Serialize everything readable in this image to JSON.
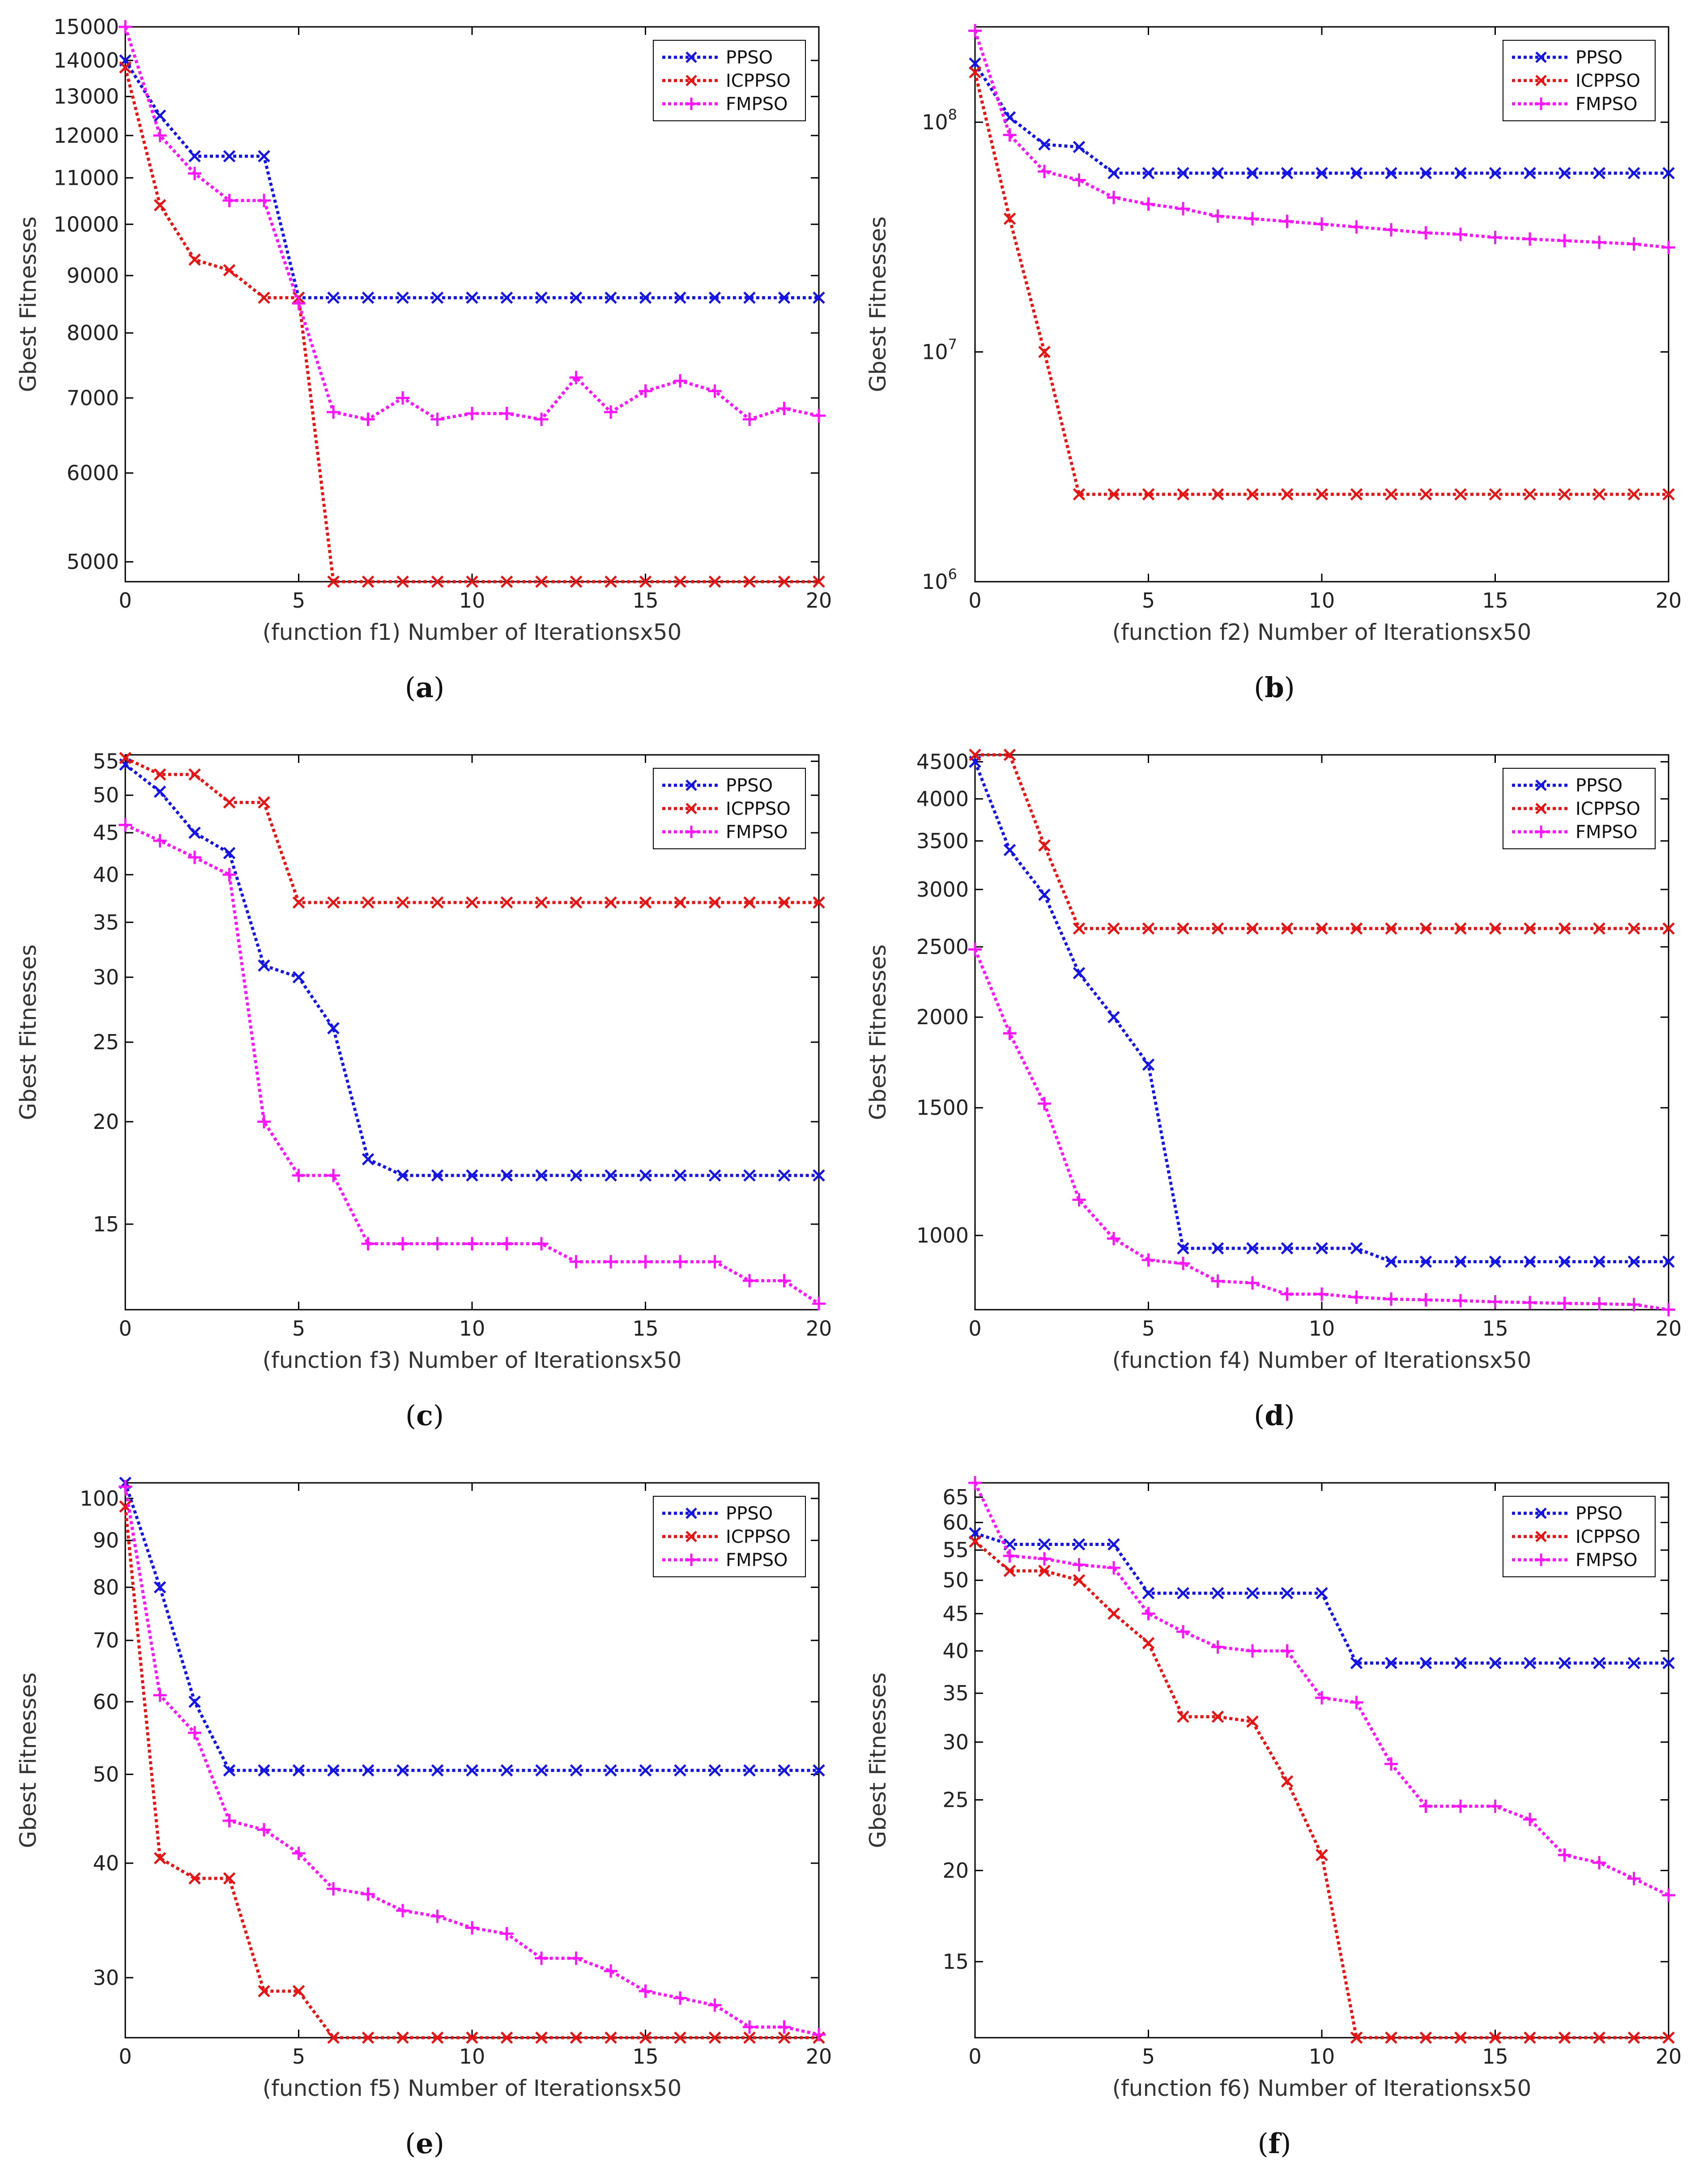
{
  "colors": {
    "PPSO": "#1414e6",
    "ICPPSO": "#e61414",
    "FMPSO": "#ff14ff",
    "axis": "#000000"
  },
  "ylabel": "Gbest Fitnesses",
  "captions": [
    "a",
    "b",
    "c",
    "d",
    "e",
    "f"
  ],
  "chart_data": [
    {
      "type": "line",
      "title": "(function f1)   Number of Iterationsx50",
      "xlabel": "(function f1)   Number of Iterationsx50",
      "ylabel": "Gbest Fitnesses",
      "yscale": "log",
      "xlim": [
        0,
        20
      ],
      "ylim": [
        4800,
        15000
      ],
      "xticks": [
        0,
        5,
        10,
        15,
        20
      ],
      "yticks": [
        5000,
        6000,
        7000,
        8000,
        9000,
        10000,
        11000,
        12000,
        13000,
        14000,
        15000
      ],
      "xtick_labels": [
        "0",
        "5",
        "10",
        "15",
        "20"
      ],
      "ytick_labels": [
        "5000",
        "6000",
        "7000",
        "8000",
        "9000",
        "10000",
        "11000",
        "12000",
        "13000",
        "14000",
        "15000"
      ],
      "legend": [
        "PPSO",
        "ICPPSO",
        "FMPSO"
      ],
      "legend_position": "top-right",
      "series": [
        {
          "name": "PPSO",
          "marker": "x",
          "values": [
            14000,
            12500,
            11500,
            11500,
            11500,
            8600,
            8600,
            8600,
            8600,
            8600,
            8600,
            8600,
            8600,
            8600,
            8600,
            8600,
            8600,
            8600,
            8600,
            8600,
            8600
          ]
        },
        {
          "name": "ICPPSO",
          "marker": "x",
          "values": [
            13800,
            10400,
            9300,
            9100,
            8600,
            8600,
            4800,
            4800,
            4800,
            4800,
            4800,
            4800,
            4800,
            4800,
            4800,
            4800,
            4800,
            4800,
            4800,
            4800,
            4800
          ]
        },
        {
          "name": "FMPSO",
          "marker": "+",
          "values": [
            15000,
            12000,
            11100,
            10500,
            10500,
            8500,
            6800,
            6700,
            7000,
            6700,
            6780,
            6780,
            6700,
            7300,
            6800,
            7100,
            7250,
            7100,
            6700,
            6850,
            6750
          ]
        }
      ]
    },
    {
      "type": "line",
      "title": "(function f2)   Number of Iterationsx50",
      "xlabel": "(function f2)   Number of Iterationsx50",
      "ylabel": "Gbest Fitnesses",
      "yscale": "log",
      "xlim": [
        0,
        20
      ],
      "ylim": [
        1000000,
        260000000
      ],
      "xticks": [
        0,
        5,
        10,
        15,
        20
      ],
      "yticks": [
        1000000,
        10000000,
        100000000
      ],
      "xtick_labels": [
        "0",
        "5",
        "10",
        "15",
        "20"
      ],
      "ytick_labels": [
        "10^6",
        "10^7",
        "10^8"
      ],
      "legend": [
        "PPSO",
        "ICPPSO",
        "FMPSO"
      ],
      "legend_position": "top-right",
      "series": [
        {
          "name": "PPSO",
          "marker": "x",
          "values": [
            180000000,
            105000000,
            80000000,
            78000000,
            60000000,
            60000000,
            60000000,
            60000000,
            60000000,
            60000000,
            60000000,
            60000000,
            60000000,
            60000000,
            60000000,
            60000000,
            60000000,
            60000000,
            60000000,
            60000000,
            60000000
          ]
        },
        {
          "name": "ICPPSO",
          "marker": "x",
          "values": [
            165000000,
            38000000,
            10000000,
            2400000,
            2400000,
            2400000,
            2400000,
            2400000,
            2400000,
            2400000,
            2400000,
            2400000,
            2400000,
            2400000,
            2400000,
            2400000,
            2400000,
            2400000,
            2400000,
            2400000,
            2400000
          ]
        },
        {
          "name": "FMPSO",
          "marker": "+",
          "values": [
            250000000,
            88000000,
            61000000,
            56000000,
            47000000,
            44000000,
            42000000,
            39000000,
            38000000,
            37000000,
            36000000,
            35000000,
            34000000,
            33000000,
            32500000,
            31500000,
            31000000,
            30500000,
            30000000,
            29500000,
            28500000
          ]
        }
      ]
    },
    {
      "type": "line",
      "title": "(function f3)   Number of Iterationsx50",
      "xlabel": "(function f3)   Number of Iterationsx50",
      "ylabel": "Gbest Fitnesses",
      "yscale": "log",
      "xlim": [
        0,
        20
      ],
      "ylim": [
        11.8,
        56
      ],
      "xticks": [
        0,
        5,
        10,
        15,
        20
      ],
      "yticks": [
        15,
        20,
        25,
        30,
        35,
        40,
        45,
        50,
        55
      ],
      "xtick_labels": [
        "0",
        "5",
        "10",
        "15",
        "20"
      ],
      "ytick_labels": [
        "15",
        "20",
        "25",
        "30",
        "35",
        "40",
        "45",
        "50",
        "55"
      ],
      "legend": [
        "PPSO",
        "ICPPSO",
        "FMPSO"
      ],
      "legend_position": "top-right",
      "series": [
        {
          "name": "PPSO",
          "marker": "x",
          "values": [
            54.5,
            50.5,
            45,
            42.5,
            31,
            30,
            26,
            18,
            17.2,
            17.2,
            17.2,
            17.2,
            17.2,
            17.2,
            17.2,
            17.2,
            17.2,
            17.2,
            17.2,
            17.2,
            17.2
          ]
        },
        {
          "name": "ICPPSO",
          "marker": "x",
          "values": [
            55.5,
            53,
            53,
            49,
            49,
            37,
            37,
            37,
            37,
            37,
            37,
            37,
            37,
            37,
            37,
            37,
            37,
            37,
            37,
            37,
            37
          ]
        },
        {
          "name": "FMPSO",
          "marker": "+",
          "values": [
            46,
            44,
            42,
            40,
            20,
            17.2,
            17.2,
            14.2,
            14.2,
            14.2,
            14.2,
            14.2,
            14.2,
            13.5,
            13.5,
            13.5,
            13.5,
            13.5,
            12.8,
            12.8,
            12
          ]
        }
      ]
    },
    {
      "type": "line",
      "title": "(function f4)   Number of Iterationsx50",
      "xlabel": "(function f4)   Number of Iterationsx50",
      "ylabel": "Gbest Fitnesses",
      "yscale": "log",
      "xlim": [
        0,
        20
      ],
      "ylim": [
        790,
        4600
      ],
      "xticks": [
        0,
        5,
        10,
        15,
        20
      ],
      "yticks": [
        1000,
        1500,
        2000,
        2500,
        3000,
        3500,
        4000,
        4500
      ],
      "xtick_labels": [
        "0",
        "5",
        "10",
        "15",
        "20"
      ],
      "ytick_labels": [
        "1000",
        "1500",
        "2000",
        "2500",
        "3000",
        "3500",
        "4000",
        "4500"
      ],
      "legend": [
        "PPSO",
        "ICPPSO",
        "FMPSO"
      ],
      "legend_position": "top-right",
      "series": [
        {
          "name": "PPSO",
          "marker": "x",
          "values": [
            4500,
            3400,
            2950,
            2300,
            2000,
            1720,
            960,
            960,
            960,
            960,
            960,
            960,
            920,
            920,
            920,
            920,
            920,
            920,
            920,
            920,
            920
          ]
        },
        {
          "name": "ICPPSO",
          "marker": "x",
          "values": [
            4600,
            4600,
            3450,
            2650,
            2650,
            2650,
            2650,
            2650,
            2650,
            2650,
            2650,
            2650,
            2650,
            2650,
            2650,
            2650,
            2650,
            2650,
            2650,
            2650,
            2650
          ]
        },
        {
          "name": "FMPSO",
          "marker": "+",
          "values": [
            2480,
            1900,
            1520,
            1120,
            990,
            925,
            915,
            865,
            860,
            830,
            830,
            822,
            817,
            815,
            813,
            810,
            808,
            806,
            805,
            803,
            790
          ]
        }
      ]
    },
    {
      "type": "line",
      "title": "(function f5)   Number of Iterationsx50",
      "xlabel": "(function f5)   Number of Iterationsx50",
      "ylabel": "Gbest Fitnesses",
      "yscale": "log",
      "xlim": [
        0,
        20
      ],
      "ylim": [
        25.8,
        104
      ],
      "xticks": [
        0,
        5,
        10,
        15,
        20
      ],
      "yticks": [
        30,
        40,
        50,
        60,
        70,
        80,
        90,
        100
      ],
      "xtick_labels": [
        "0",
        "5",
        "10",
        "15",
        "20"
      ],
      "ytick_labels": [
        "30",
        "40",
        "50",
        "60",
        "70",
        "80",
        "90",
        "100"
      ],
      "legend": [
        "PPSO",
        "ICPPSO",
        "FMPSO"
      ],
      "legend_position": "top-right",
      "series": [
        {
          "name": "PPSO",
          "marker": "x",
          "values": [
            104,
            80,
            60,
            50.5,
            50.5,
            50.5,
            50.5,
            50.5,
            50.5,
            50.5,
            50.5,
            50.5,
            50.5,
            50.5,
            50.5,
            50.5,
            50.5,
            50.5,
            50.5,
            50.5,
            50.5
          ]
        },
        {
          "name": "ICPPSO",
          "marker": "x",
          "values": [
            98,
            40.5,
            38.5,
            38.5,
            29,
            29,
            25.8,
            25.8,
            25.8,
            25.8,
            25.8,
            25.8,
            25.8,
            25.8,
            25.8,
            25.8,
            25.8,
            25.8,
            25.8,
            25.8,
            25.8
          ]
        },
        {
          "name": "FMPSO",
          "marker": "+",
          "values": [
            103,
            61,
            55.5,
            44.5,
            43.5,
            41,
            37.5,
            37,
            35.5,
            35,
            34,
            33.5,
            31.5,
            31.5,
            30.5,
            29,
            28.5,
            28,
            26.5,
            26.5,
            26
          ]
        }
      ]
    },
    {
      "type": "line",
      "title": "(function f6)   Number of Iterationsx50",
      "xlabel": "(function f6)   Number of Iterationsx50",
      "ylabel": "Gbest Fitnesses",
      "yscale": "log",
      "xlim": [
        0,
        20
      ],
      "ylim": [
        11.8,
        68
      ],
      "xticks": [
        0,
        5,
        10,
        15,
        20
      ],
      "yticks": [
        15,
        20,
        25,
        30,
        35,
        40,
        45,
        50,
        55,
        60,
        65
      ],
      "xtick_labels": [
        "0",
        "5",
        "10",
        "15",
        "20"
      ],
      "ytick_labels": [
        "15",
        "20",
        "25",
        "30",
        "35",
        "40",
        "45",
        "50",
        "55",
        "60",
        "65"
      ],
      "legend": [
        "PPSO",
        "ICPPSO",
        "FMPSO"
      ],
      "legend_position": "top-right",
      "series": [
        {
          "name": "PPSO",
          "marker": "x",
          "values": [
            58,
            56,
            56,
            56,
            56,
            48,
            48,
            48,
            48,
            48,
            48,
            38.5,
            38.5,
            38.5,
            38.5,
            38.5,
            38.5,
            38.5,
            38.5,
            38.5,
            38.5
          ]
        },
        {
          "name": "ICPPSO",
          "marker": "x",
          "values": [
            56.5,
            51.5,
            51.5,
            50,
            45,
            41,
            32.5,
            32.5,
            32,
            26.5,
            21,
            11.8,
            11.8,
            11.8,
            11.8,
            11.8,
            11.8,
            11.8,
            11.8,
            11.8,
            11.8
          ]
        },
        {
          "name": "FMPSO",
          "marker": "+",
          "values": [
            68,
            54,
            53.5,
            52.5,
            52,
            45,
            42.5,
            40.5,
            40,
            40,
            34.5,
            34,
            28,
            24.5,
            24.5,
            24.5,
            23.5,
            21,
            20.5,
            19.5,
            18.5
          ]
        }
      ]
    }
  ]
}
